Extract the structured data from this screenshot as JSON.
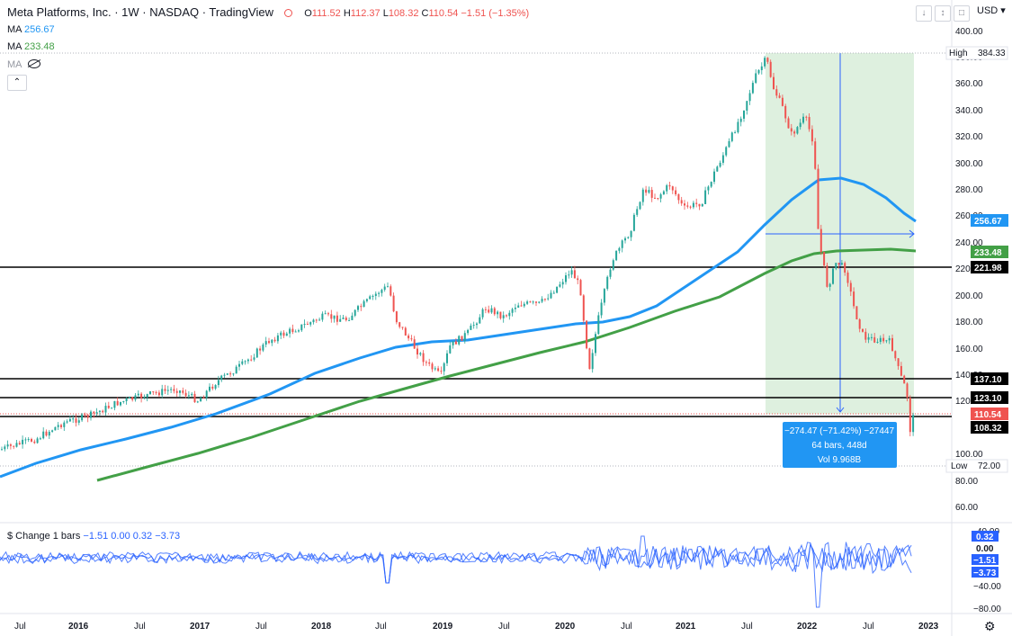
{
  "header": {
    "title": "Meta Platforms, Inc. · 1W · NASDAQ · TradingView",
    "ohlc": {
      "o_label": "O",
      "o": "111.52",
      "h_label": "H",
      "h": "112.37",
      "l_label": "L",
      "l": "108.32",
      "c_label": "C",
      "c": "110.54",
      "change": "−1.51 (−1.35%)"
    }
  },
  "indicators": {
    "ma1": {
      "label": "MA",
      "value": "256.67",
      "color": "#2196f3"
    },
    "ma2": {
      "label": "MA",
      "value": "233.48",
      "color": "#43a047"
    },
    "ma3": {
      "label": "MA",
      "icon": "eye-hidden-icon"
    }
  },
  "toolbar": {
    "collapse_icon": "chevron-up-icon",
    "currency": "USD",
    "icons": [
      "arrow-down-icon",
      "expand-icon",
      "maximize-icon"
    ]
  },
  "price_axis": {
    "ticks": [
      "400.00",
      "380.00",
      "360.00",
      "340.00",
      "320.00",
      "300.00",
      "280.00",
      "260.00",
      "240.00",
      "220.00",
      "200.00",
      "180.00",
      "160.00",
      "140.00",
      "120.00",
      "100.00",
      "80.00",
      "60.00",
      "40.00"
    ],
    "labels": {
      "high": {
        "text": "High",
        "value": "384.33"
      },
      "low": {
        "text": "Low",
        "value": "72.00"
      },
      "ma1": "256.67",
      "ma2": "233.48",
      "level1": "221.98",
      "level2": "137.10",
      "level3": "123.10",
      "close": "110.54",
      "last_low": "108.32"
    }
  },
  "time_axis": [
    "Jul",
    "2016",
    "Jul",
    "2017",
    "Jul",
    "2018",
    "Jul",
    "2019",
    "Jul",
    "2020",
    "Jul",
    "2021",
    "Jul",
    "2022",
    "Jul",
    "2023"
  ],
  "measure_box": {
    "line1": "−274.47 (−71.42%) −27447",
    "line2": "64 bars, 448d",
    "line3": "Vol 9.968B",
    "color": "#2962ff",
    "fill": "#c8e6c9"
  },
  "lower_pane": {
    "label": "$ Change 1 bars",
    "values": "−1.51  0.00  0.32  −3.73",
    "axis_ticks": [
      "40.00",
      "0.00",
      "−40.00",
      "−80.00"
    ],
    "badges": [
      "0.32",
      "0.00",
      "−1.51",
      "−3.73"
    ]
  },
  "colors": {
    "up": "#26a69a",
    "down": "#ef5350",
    "ma1": "#2196f3",
    "ma2": "#43a047",
    "line": "#2962ff"
  },
  "settings_icon": "gear-icon"
}
